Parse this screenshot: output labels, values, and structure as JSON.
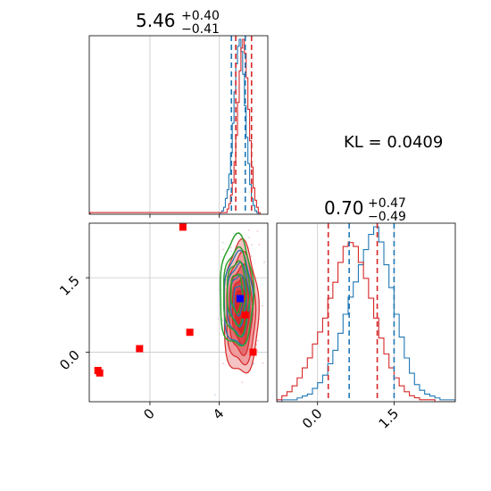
{
  "chart_data": {
    "type": "corner",
    "kl_text": "KL = 0.0409",
    "colors": {
      "series_a": "#1f77b4",
      "series_b": "#d62728",
      "contour_green": "#2ca02c",
      "marker_red": "#ff0000",
      "marker_blue": "#0000ff"
    },
    "grid": true,
    "panels": [
      {
        "name": "param-1-histogram",
        "type": "histogram",
        "title_value": "5.46",
        "title_plus": "+0.40",
        "title_minus": "−0.41",
        "xlim": [
          -3.5,
          6.8
        ],
        "quantiles_series_a": [
          4.7,
          5.5
        ],
        "quantiles_series_b": [
          4.95,
          5.86
        ],
        "hist_series_a": {
          "x": [
            4.1,
            4.2,
            4.3,
            4.4,
            4.5,
            4.6,
            4.7,
            4.8,
            4.9,
            5.0,
            5.1,
            5.2,
            5.3,
            5.4,
            5.5,
            5.6,
            5.7,
            5.8,
            5.9,
            6.0,
            6.1,
            6.2
          ],
          "counts": [
            1,
            2,
            4,
            9,
            14,
            23,
            35,
            52,
            70,
            86,
            96,
            100,
            93,
            80,
            62,
            44,
            29,
            17,
            9,
            5,
            2,
            1
          ]
        },
        "hist_series_b": {
          "x": [
            -3.4,
            -3.2,
            4.4,
            4.5,
            4.6,
            4.7,
            4.8,
            4.9,
            5.0,
            5.1,
            5.2,
            5.3,
            5.4,
            5.5,
            5.6,
            5.7,
            5.8,
            5.9,
            6.0,
            6.1,
            6.2,
            6.3
          ],
          "counts": [
            1,
            1,
            1,
            3,
            6,
            11,
            18,
            30,
            45,
            64,
            82,
            95,
            100,
            92,
            78,
            60,
            42,
            27,
            15,
            8,
            4,
            1
          ]
        }
      },
      {
        "name": "joint-scatter",
        "type": "scatter",
        "xlim": [
          -3.5,
          6.8
        ],
        "ylim": [
          -1.0,
          2.6
        ],
        "xticks": [
          0,
          4
        ],
        "xtick_labels": [
          "0",
          "4"
        ],
        "yticks": [
          0.0,
          1.5
        ],
        "ytick_labels": [
          "0.0",
          "1.5"
        ],
        "red_markers": [
          {
            "x": -3.0,
            "y": -0.37
          },
          {
            "x": -2.9,
            "y": -0.42
          },
          {
            "x": -0.6,
            "y": 0.07
          },
          {
            "x": 1.9,
            "y": 2.52
          },
          {
            "x": 2.3,
            "y": 0.4
          },
          {
            "x": 5.5,
            "y": 0.75
          },
          {
            "x": 5.95,
            "y": 0.0
          }
        ],
        "blue_marker": {
          "x": 5.2,
          "y": 1.08
        },
        "contours_series_b": {
          "center": [
            5.25,
            0.85
          ],
          "sigma": [
            0.42,
            0.55
          ]
        },
        "contours_series_a": {
          "center": [
            5.1,
            1.05
          ],
          "sigma": [
            0.38,
            0.42
          ]
        },
        "contours_green": {
          "center": [
            5.0,
            1.2
          ],
          "sigma": [
            0.42,
            0.48
          ]
        }
      },
      {
        "name": "param-2-histogram",
        "type": "histogram",
        "title_value": "0.70",
        "title_plus": "+0.47",
        "title_minus": "−0.49",
        "xlim": [
          -0.8,
          2.7
        ],
        "xticks": [
          0.0,
          1.5
        ],
        "xtick_labels": [
          "0.0",
          "1.5"
        ],
        "quantiles_series_a": [
          0.62,
          1.5
        ],
        "quantiles_series_b": [
          0.21,
          1.17
        ],
        "hist_series_a": {
          "x": [
            -0.75,
            -0.65,
            -0.55,
            -0.45,
            -0.35,
            -0.25,
            -0.15,
            -0.05,
            0.05,
            0.15,
            0.25,
            0.35,
            0.45,
            0.55,
            0.65,
            0.75,
            0.85,
            0.95,
            1.05,
            1.15,
            1.25,
            1.35,
            1.45,
            1.55,
            1.65,
            1.75,
            1.85,
            1.95,
            2.05,
            2.15,
            2.25,
            2.35,
            2.45,
            2.55,
            2.65
          ],
          "counts": [
            0,
            1,
            1,
            1,
            2,
            3,
            4,
            7,
            10,
            14,
            20,
            27,
            36,
            46,
            55,
            63,
            72,
            80,
            88,
            92,
            84,
            72,
            60,
            46,
            34,
            23,
            15,
            9,
            6,
            4,
            3,
            2,
            1,
            1,
            1
          ]
        },
        "hist_series_b": {
          "x": [
            -0.75,
            -0.65,
            -0.55,
            -0.45,
            -0.35,
            -0.25,
            -0.15,
            -0.05,
            0.05,
            0.15,
            0.25,
            0.35,
            0.45,
            0.55,
            0.65,
            0.75,
            0.85,
            0.95,
            1.05,
            1.15,
            1.25,
            1.35,
            1.45,
            1.55,
            1.65,
            1.75,
            1.85,
            1.95,
            2.05,
            2.15,
            2.25,
            2.35,
            2.45,
            2.55,
            2.65
          ],
          "counts": [
            1,
            3,
            5,
            8,
            12,
            17,
            22,
            29,
            35,
            42,
            52,
            60,
            70,
            78,
            80,
            78,
            70,
            62,
            52,
            42,
            32,
            24,
            17,
            12,
            8,
            5,
            3,
            2,
            1,
            1,
            1,
            0,
            0,
            0,
            0
          ]
        }
      }
    ]
  }
}
